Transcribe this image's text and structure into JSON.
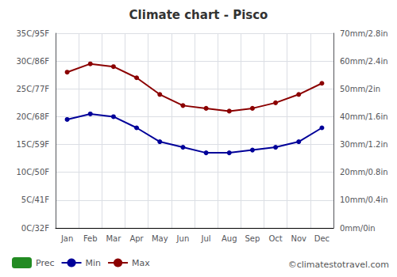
{
  "chart_data": {
    "type": "line",
    "title": "Climate chart - Pisco",
    "categories": [
      "Jan",
      "Feb",
      "Mar",
      "Apr",
      "May",
      "Jun",
      "Jul",
      "Aug",
      "Sep",
      "Oct",
      "Nov",
      "Dec"
    ],
    "series": [
      {
        "name": "Prec",
        "type": "bar",
        "axis": "y2",
        "color": "#228B22",
        "values": [
          null,
          null,
          null,
          null,
          null,
          null,
          null,
          null,
          null,
          null,
          null,
          null
        ]
      },
      {
        "name": "Min",
        "type": "line",
        "color": "#000099",
        "marker": "circle",
        "values": [
          19.5,
          20.5,
          20,
          18,
          15.5,
          14.5,
          13.5,
          13.5,
          14,
          14.5,
          15.5,
          18
        ]
      },
      {
        "name": "Max",
        "type": "line",
        "color": "#8B0000",
        "marker": "circle",
        "values": [
          28,
          29.5,
          29,
          27,
          24,
          22,
          21.5,
          21,
          21.5,
          22.5,
          24,
          26
        ]
      }
    ],
    "ylim": [
      0,
      35
    ],
    "yticks": [
      {
        "value": 0,
        "label": "0C/32F"
      },
      {
        "value": 5,
        "label": "5C/41F"
      },
      {
        "value": 10,
        "label": "10C/50F"
      },
      {
        "value": 15,
        "label": "15C/59F"
      },
      {
        "value": 20,
        "label": "20C/68F"
      },
      {
        "value": 25,
        "label": "25C/77F"
      },
      {
        "value": 30,
        "label": "30C/86F"
      },
      {
        "value": 35,
        "label": "35C/95F"
      }
    ],
    "y2lim": [
      0,
      70
    ],
    "y2ticks": [
      {
        "value": 0,
        "label": "0mm/0in"
      },
      {
        "value": 10,
        "label": "10mm/0.4in"
      },
      {
        "value": 20,
        "label": "20mm/0.8in"
      },
      {
        "value": 30,
        "label": "30mm/1.2in"
      },
      {
        "value": 40,
        "label": "40mm/1.6in"
      },
      {
        "value": 50,
        "label": "50mm/2in"
      },
      {
        "value": 60,
        "label": "60mm/2.4in"
      },
      {
        "value": 70,
        "label": "70mm/2.8in"
      }
    ],
    "grid": true,
    "legend": "lower left",
    "annotations": [
      "©climatestotravel.com"
    ]
  }
}
